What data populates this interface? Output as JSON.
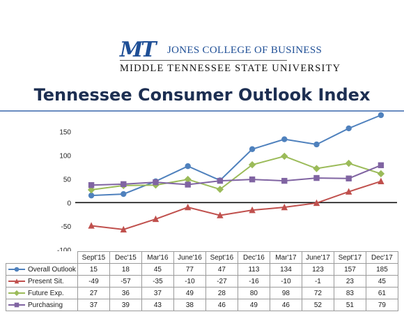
{
  "header": {
    "logo_text": "MT",
    "college": "JONES COLLEGE OF BUSINESS",
    "university": "MIDDLE TENNESSEE STATE UNIVERSITY"
  },
  "chart_data": {
    "type": "line",
    "title": "Tennessee Consumer Outlook Index",
    "categories": [
      "Sept'15",
      "Dec'15",
      "Mar'16",
      "June'16",
      "Sept'16",
      "Dec'16",
      "Mar'17",
      "June'17",
      "Sept'17",
      "Dec'17"
    ],
    "series": [
      {
        "name": "Overall Outlook",
        "color": "#4f81bd",
        "marker": "circle",
        "values": [
          15,
          18,
          45,
          77,
          47,
          113,
          134,
          123,
          157,
          185
        ]
      },
      {
        "name": "Present Sit.",
        "color": "#c0504d",
        "marker": "triangle",
        "values": [
          -49,
          -57,
          -35,
          -10,
          -27,
          -16,
          -10,
          -1,
          23,
          45
        ]
      },
      {
        "name": "Future Exp.",
        "color": "#9bbb59",
        "marker": "diamond",
        "values": [
          27,
          36,
          37,
          49,
          28,
          80,
          98,
          72,
          83,
          61
        ]
      },
      {
        "name": "Purchasing",
        "color": "#8064a2",
        "marker": "square",
        "values": [
          37,
          39,
          43,
          38,
          46,
          49,
          46,
          52,
          51,
          79
        ]
      }
    ],
    "ylim": [
      -100,
      185
    ],
    "yticks": [
      -100,
      -50,
      0,
      50,
      100,
      150
    ],
    "grid": false,
    "legend": "data-table-left"
  }
}
